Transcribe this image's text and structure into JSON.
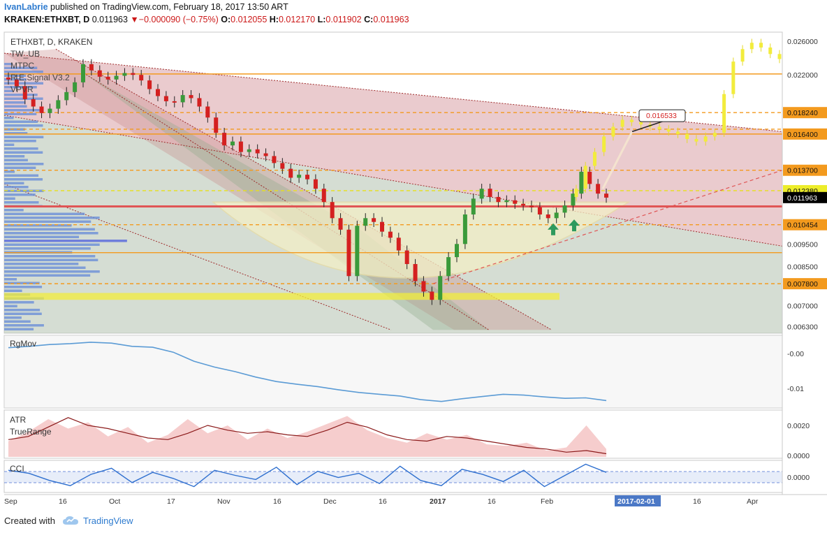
{
  "header": {
    "author": "IvanLabrie",
    "published_text": "published on TradingView.com, February 18, 2017 13:50 ART",
    "symbol_line": "KRAKEN:ETHXBT, D",
    "last_price": "0.011963",
    "change": "▼−0.000090 (−0.75%)",
    "open_label": "O:",
    "open": "0.012055",
    "high_label": "H:",
    "high": "0.012170",
    "low_label": "L:",
    "low": "0.011902",
    "close_label": "C:",
    "close": "0.011963"
  },
  "footer": {
    "created_with": "Created with",
    "brand": "TradingView"
  },
  "colors": {
    "up": "#3a9a3a",
    "down": "#d42020",
    "projection": "#f2ec3c",
    "orange": "#f39a1e",
    "red_line": "#e05555",
    "ma_line": "#5b9bd5",
    "atr_line": "#8b1a1a",
    "cci_line": "#2e6fcf"
  },
  "chart_data": [
    {
      "type": "candlestick",
      "pane": "main",
      "title": "ETHXBT, D, KRAKEN",
      "indicators": [
        "TW_UB",
        "MTPC",
        "R.E.Signal V3.2",
        "VPVR"
      ],
      "x_ticks": [
        "Sep",
        "16",
        "Oct",
        "17",
        "Nov",
        "16",
        "Dec",
        "16",
        "2017",
        "16",
        "Feb",
        "2017-02-01",
        "16",
        "Apr"
      ],
      "y_ticks": [
        "0.026000",
        "0.022000",
        "0.018240",
        "0.016400",
        "0.013700",
        "0.012380",
        "0.011963",
        "0.010454",
        "0.009500",
        "0.008500",
        "0.007800",
        "0.007000",
        "0.006300"
      ],
      "highlight_labels": [
        "0.018240",
        "0.016400",
        "0.013700",
        "0.012380",
        "0.011963",
        "0.010454",
        "0.007800"
      ],
      "ylim": [
        0.0061,
        0.0272
      ],
      "y_scale": "log",
      "levels": [
        {
          "value": 0.0221,
          "style": "solid"
        },
        {
          "value": 0.01824,
          "style": "dashed"
        },
        {
          "value": 0.0168,
          "style": "dashed"
        },
        {
          "value": 0.0164,
          "style": "solid"
        },
        {
          "value": 0.0137,
          "style": "dashed"
        },
        {
          "value": 0.01238,
          "style": "dashed-yellow"
        },
        {
          "value": 0.01145,
          "style": "solid-red"
        },
        {
          "value": 0.010454,
          "style": "dashed"
        },
        {
          "value": 0.0091,
          "style": "solid"
        },
        {
          "value": 0.0078,
          "style": "dashed"
        }
      ],
      "annotation": "0.016533",
      "series": [
        {
          "name": "Price (ETHXBT daily closes)",
          "period": "Sep 2016 – Feb 2017",
          "values": [
            0.0215,
            0.0208,
            0.0195,
            0.0188,
            0.0182,
            0.0186,
            0.0194,
            0.0202,
            0.0212,
            0.0232,
            0.0225,
            0.0218,
            0.0215,
            0.0219,
            0.0222,
            0.022,
            0.0214,
            0.0205,
            0.0198,
            0.0193,
            0.0192,
            0.0199,
            0.0196,
            0.0188,
            0.0178,
            0.0165,
            0.0155,
            0.0158,
            0.015,
            0.0152,
            0.0149,
            0.0147,
            0.0142,
            0.0138,
            0.0132,
            0.0134,
            0.0131,
            0.0125,
            0.0117,
            0.0108,
            0.0102,
            0.0081,
            0.0104,
            0.0108,
            0.0106,
            0.0101,
            0.0098,
            0.0092,
            0.0086,
            0.0079,
            0.0075,
            0.0072,
            0.0081,
            0.0089,
            0.0095,
            0.011,
            0.0119,
            0.0125,
            0.012,
            0.0117,
            0.0118,
            0.0116,
            0.0115,
            0.0114,
            0.011,
            0.0108,
            0.0111,
            0.0115,
            0.0122,
            0.0136,
            0.0128,
            0.0122,
            0.01196
          ]
        },
        {
          "name": "Projection",
          "period": "Feb – Apr 2017",
          "values": [
            0.0125,
            0.014,
            0.015,
            0.0162,
            0.017,
            0.0176,
            0.0174,
            0.0172,
            0.017,
            0.0168,
            0.0166,
            0.0164,
            0.016,
            0.0158,
            0.0162,
            0.0165,
            0.02,
            0.0235,
            0.025,
            0.0258,
            0.0252,
            0.0244,
            0.0238
          ]
        }
      ]
    },
    {
      "type": "line",
      "pane": "RgMov",
      "title": "RgMov",
      "y_ticks": [
        "-0.00",
        "-0.01"
      ],
      "values": [
        -0.0015,
        -0.0012,
        -0.0008,
        -0.0006,
        -0.0003,
        -0.0005,
        -0.0012,
        -0.0014,
        -0.0025,
        -0.0045,
        -0.0058,
        -0.0068,
        -0.008,
        -0.009,
        -0.0096,
        -0.0101,
        -0.0108,
        -0.0114,
        -0.0118,
        -0.0122,
        -0.013,
        -0.0134,
        -0.0128,
        -0.0123,
        -0.0118,
        -0.012,
        -0.0124,
        -0.0127,
        -0.0126,
        -0.0132
      ]
    },
    {
      "type": "area",
      "pane": "ATR",
      "title": "ATR",
      "subtitle": "TrueRange",
      "y_ticks": [
        "0.0020",
        "0.0000"
      ],
      "atr": [
        0.0011,
        0.0013,
        0.0019,
        0.0025,
        0.002,
        0.0018,
        0.0015,
        0.0012,
        0.0011,
        0.0015,
        0.002,
        0.0017,
        0.0015,
        0.0016,
        0.0014,
        0.0013,
        0.0017,
        0.0022,
        0.0019,
        0.0014,
        0.0011,
        0.001,
        0.0013,
        0.0012,
        0.001,
        0.0008,
        0.0006,
        0.0005,
        0.0003,
        0.0004,
        0.0002
      ],
      "truerange": [
        0.001,
        0.0016,
        0.0024,
        0.0018,
        0.0022,
        0.0013,
        0.0019,
        0.0009,
        0.0014,
        0.0024,
        0.0015,
        0.002,
        0.0011,
        0.0018,
        0.0012,
        0.0016,
        0.0021,
        0.0026,
        0.0017,
        0.0012,
        0.0009,
        0.0015,
        0.0011,
        0.0014,
        0.0008,
        0.0007,
        0.0009,
        0.0004,
        0.0006,
        0.002,
        0.0005
      ]
    },
    {
      "type": "line",
      "pane": "CCI",
      "title": "CCI",
      "y_ticks": [
        "0.0000"
      ],
      "values": [
        60,
        30,
        -40,
        -90,
        20,
        80,
        -60,
        40,
        -20,
        -100,
        60,
        10,
        -30,
        90,
        -80,
        50,
        -10,
        30,
        -70,
        100,
        -40,
        -90,
        70,
        20,
        -50,
        60,
        -100,
        10,
        120,
        40
      ]
    }
  ]
}
